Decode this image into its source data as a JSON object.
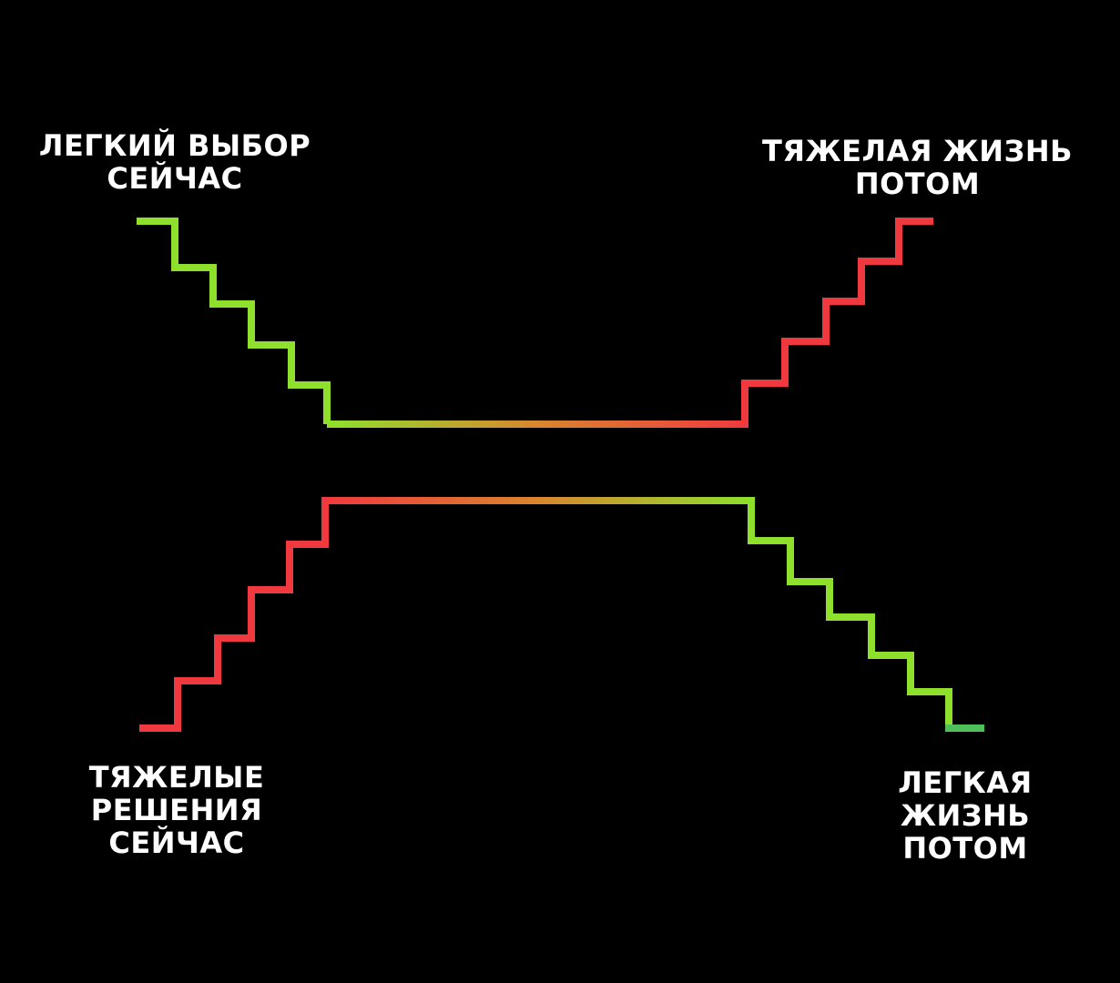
{
  "labels": {
    "top_left": [
      "ЛЕГКИЙ ВЫБОР",
      "СЕЙЧАС"
    ],
    "top_right": [
      "ТЯЖЕЛАЯ ЖИЗНЬ",
      "ПОТОМ"
    ],
    "bottom_left": [
      "ТЯЖЕЛЫЕ",
      "РЕШЕНИЯ",
      "СЕЙЧАС"
    ],
    "bottom_right": [
      "ЛЕГКАЯ",
      "ЖИЗНЬ",
      "ПОТОМ"
    ]
  },
  "colors": {
    "background": "#000000",
    "text": "#ffffff",
    "green": "#8ee02c",
    "red": "#f0393e",
    "end_green": "#4fbf5a"
  }
}
